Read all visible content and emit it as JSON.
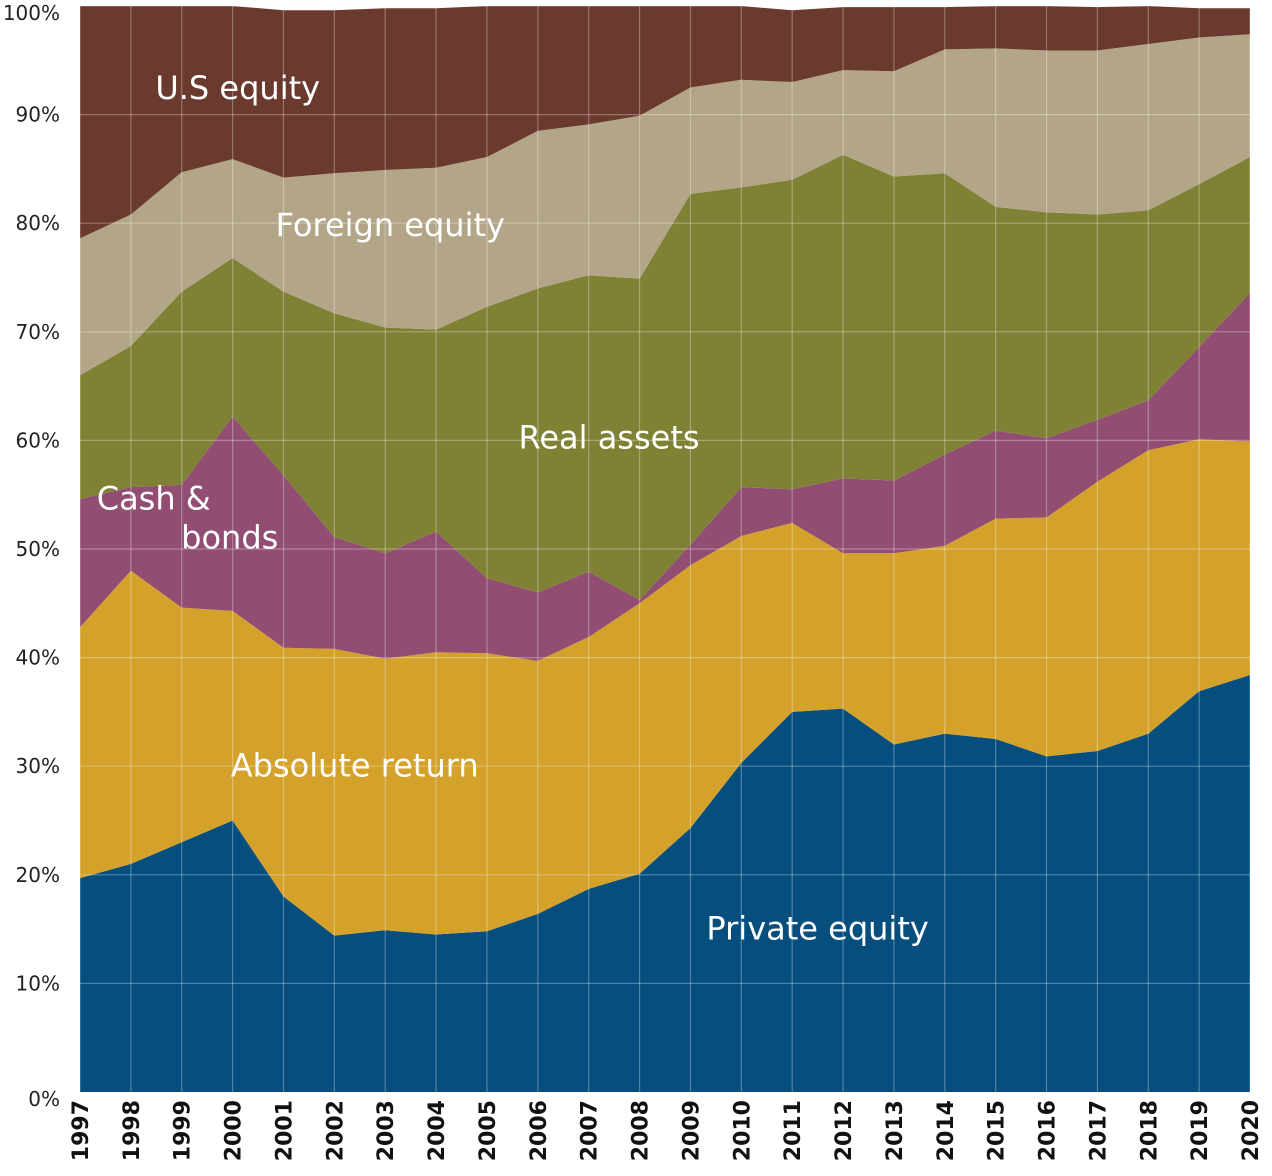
{
  "chart_data": {
    "type": "area",
    "stacked": true,
    "normalized": true,
    "title": "",
    "xlabel": "",
    "ylabel": "",
    "ylim": [
      0,
      100
    ],
    "yticks": [
      0,
      10,
      20,
      30,
      40,
      50,
      60,
      70,
      80,
      90,
      100
    ],
    "ytick_labels": [
      "0%",
      "10%",
      "20%",
      "30%",
      "40%",
      "50%",
      "60%",
      "70%",
      "80%",
      "90%",
      "100%"
    ],
    "grid": true,
    "legend": "inline labels",
    "x": [
      "1997",
      "1998",
      "1999",
      "2000",
      "2001",
      "2002",
      "2003",
      "2004",
      "2005",
      "2006",
      "2007",
      "2008",
      "2009",
      "2010",
      "2011",
      "2012",
      "2013",
      "2014",
      "2015",
      "2016",
      "2017",
      "2018",
      "2019",
      "2020"
    ],
    "series": [
      {
        "name": "Private equity",
        "color": "#054e7e",
        "values": [
          19.7,
          21.0,
          23.0,
          25.0,
          18.0,
          14.4,
          14.9,
          14.5,
          14.8,
          16.4,
          18.7,
          20.1,
          24.3,
          30.3,
          35.0,
          35.3,
          32.0,
          33.0,
          32.5,
          30.9,
          31.4,
          33.0,
          36.9,
          38.4
        ]
      },
      {
        "name": "Absolute return",
        "color": "#d4a22b",
        "values": [
          23.1,
          27.0,
          21.6,
          19.3,
          22.9,
          26.4,
          25.0,
          26.0,
          25.6,
          23.3,
          23.2,
          24.9,
          24.2,
          20.9,
          17.4,
          14.3,
          17.6,
          17.3,
          20.3,
          22.0,
          24.8,
          26.1,
          23.2,
          21.5
        ]
      },
      {
        "name": "Cash & bonds",
        "color": "#914e72",
        "values": [
          11.8,
          7.7,
          11.3,
          17.9,
          15.9,
          10.3,
          9.7,
          11.1,
          6.9,
          6.3,
          6.0,
          0.3,
          1.9,
          4.5,
          3.1,
          6.9,
          6.7,
          8.4,
          8.1,
          7.3,
          5.7,
          4.6,
          8.5,
          13.7
        ]
      },
      {
        "name": "Real assets",
        "color": "#7f8135",
        "values": [
          11.4,
          13.0,
          17.8,
          14.6,
          16.9,
          20.6,
          20.8,
          18.6,
          25.0,
          28.0,
          27.3,
          29.6,
          32.3,
          27.6,
          28.5,
          29.8,
          28.0,
          25.9,
          20.6,
          20.8,
          18.9,
          17.5,
          15.0,
          12.5
        ]
      },
      {
        "name": "Foreign equity",
        "color": "#b3a688",
        "values": [
          12.6,
          12.1,
          11.0,
          9.1,
          10.5,
          12.9,
          14.5,
          14.9,
          13.8,
          14.5,
          13.9,
          15.0,
          9.8,
          9.9,
          9.0,
          7.8,
          9.7,
          11.4,
          14.6,
          14.9,
          15.1,
          15.3,
          13.5,
          11.3
        ]
      },
      {
        "name": "U.S equity",
        "color": "#6b3a2f",
        "values": [
          21.4,
          19.2,
          15.3,
          14.1,
          15.4,
          15.0,
          14.9,
          14.7,
          13.9,
          11.5,
          10.9,
          10.1,
          7.5,
          6.8,
          6.6,
          5.8,
          5.9,
          3.9,
          3.9,
          4.1,
          4.0,
          3.5,
          2.7,
          2.4
        ]
      }
    ]
  }
}
